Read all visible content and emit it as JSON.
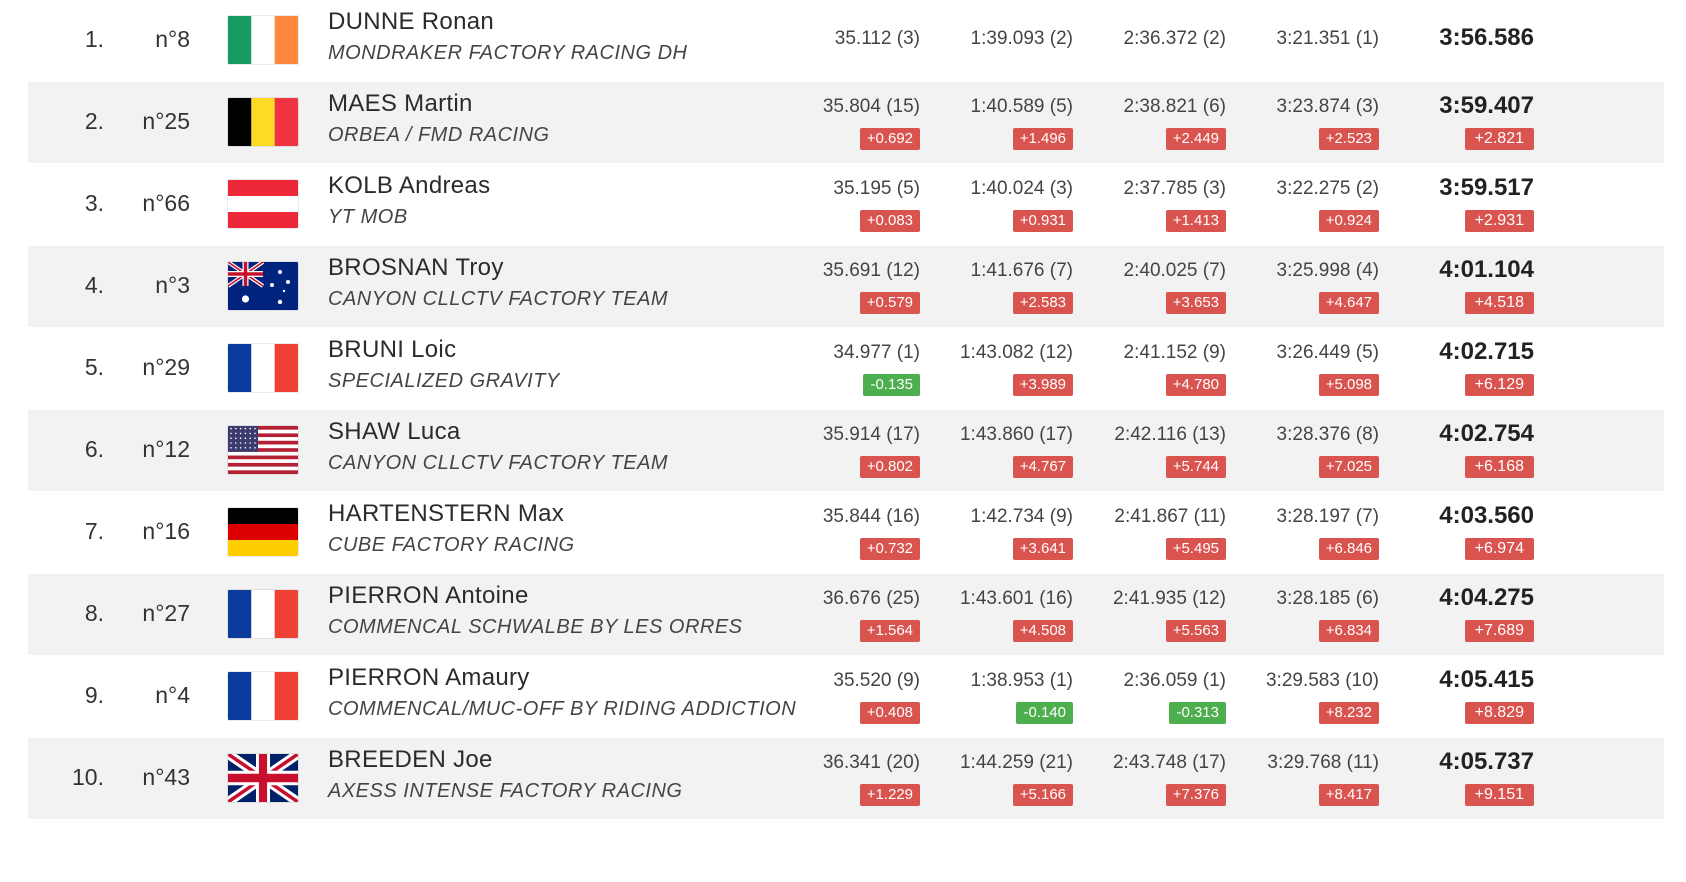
{
  "results": [
    {
      "rank": "1.",
      "bib": "n°8",
      "flag": "ireland",
      "name": "DUNNE Ronan",
      "team": "MONDRAKER FACTORY RACING DH",
      "splits": [
        {
          "time": "35.112 (3)",
          "gap": ""
        },
        {
          "time": "1:39.093 (2)",
          "gap": ""
        },
        {
          "time": "2:36.372 (2)",
          "gap": ""
        },
        {
          "time": "3:21.351 (1)",
          "gap": ""
        }
      ],
      "total": {
        "time": "3:56.586",
        "gap": ""
      }
    },
    {
      "rank": "2.",
      "bib": "n°25",
      "flag": "belgium",
      "name": "MAES Martin",
      "team": "ORBEA / FMD RACING",
      "splits": [
        {
          "time": "35.804 (15)",
          "gap": "+0.692"
        },
        {
          "time": "1:40.589 (5)",
          "gap": "+1.496"
        },
        {
          "time": "2:38.821 (6)",
          "gap": "+2.449"
        },
        {
          "time": "3:23.874 (3)",
          "gap": "+2.523"
        }
      ],
      "total": {
        "time": "3:59.407",
        "gap": "+2.821"
      }
    },
    {
      "rank": "3.",
      "bib": "n°66",
      "flag": "austria",
      "name": "KOLB Andreas",
      "team": "YT MOB",
      "splits": [
        {
          "time": "35.195 (5)",
          "gap": "+0.083"
        },
        {
          "time": "1:40.024 (3)",
          "gap": "+0.931"
        },
        {
          "time": "2:37.785 (3)",
          "gap": "+1.413"
        },
        {
          "time": "3:22.275 (2)",
          "gap": "+0.924"
        }
      ],
      "total": {
        "time": "3:59.517",
        "gap": "+2.931"
      }
    },
    {
      "rank": "4.",
      "bib": "n°3",
      "flag": "australia",
      "name": "BROSNAN Troy",
      "team": "CANYON CLLCTV FACTORY TEAM",
      "splits": [
        {
          "time": "35.691 (12)",
          "gap": "+0.579"
        },
        {
          "time": "1:41.676 (7)",
          "gap": "+2.583"
        },
        {
          "time": "2:40.025 (7)",
          "gap": "+3.653"
        },
        {
          "time": "3:25.998 (4)",
          "gap": "+4.647"
        }
      ],
      "total": {
        "time": "4:01.104",
        "gap": "+4.518"
      }
    },
    {
      "rank": "5.",
      "bib": "n°29",
      "flag": "france",
      "name": "BRUNI Loic",
      "team": "SPECIALIZED GRAVITY",
      "splits": [
        {
          "time": "34.977 (1)",
          "gap": "-0.135"
        },
        {
          "time": "1:43.082 (12)",
          "gap": "+3.989"
        },
        {
          "time": "2:41.152 (9)",
          "gap": "+4.780"
        },
        {
          "time": "3:26.449 (5)",
          "gap": "+5.098"
        }
      ],
      "total": {
        "time": "4:02.715",
        "gap": "+6.129"
      }
    },
    {
      "rank": "6.",
      "bib": "n°12",
      "flag": "usa",
      "name": "SHAW Luca",
      "team": "CANYON CLLCTV FACTORY TEAM",
      "splits": [
        {
          "time": "35.914 (17)",
          "gap": "+0.802"
        },
        {
          "time": "1:43.860 (17)",
          "gap": "+4.767"
        },
        {
          "time": "2:42.116 (13)",
          "gap": "+5.744"
        },
        {
          "time": "3:28.376 (8)",
          "gap": "+7.025"
        }
      ],
      "total": {
        "time": "4:02.754",
        "gap": "+6.168"
      }
    },
    {
      "rank": "7.",
      "bib": "n°16",
      "flag": "germany",
      "name": "HARTENSTERN Max",
      "team": "CUBE FACTORY RACING",
      "splits": [
        {
          "time": "35.844 (16)",
          "gap": "+0.732"
        },
        {
          "time": "1:42.734 (9)",
          "gap": "+3.641"
        },
        {
          "time": "2:41.867 (11)",
          "gap": "+5.495"
        },
        {
          "time": "3:28.197 (7)",
          "gap": "+6.846"
        }
      ],
      "total": {
        "time": "4:03.560",
        "gap": "+6.974"
      }
    },
    {
      "rank": "8.",
      "bib": "n°27",
      "flag": "france",
      "name": "PIERRON Antoine",
      "team": "COMMENCAL SCHWALBE BY LES ORRES",
      "splits": [
        {
          "time": "36.676 (25)",
          "gap": "+1.564"
        },
        {
          "time": "1:43.601 (16)",
          "gap": "+4.508"
        },
        {
          "time": "2:41.935 (12)",
          "gap": "+5.563"
        },
        {
          "time": "3:28.185 (6)",
          "gap": "+6.834"
        }
      ],
      "total": {
        "time": "4:04.275",
        "gap": "+7.689"
      }
    },
    {
      "rank": "9.",
      "bib": "n°4",
      "flag": "france",
      "name": "PIERRON Amaury",
      "team": "COMMENCAL/MUC-OFF BY RIDING ADDICTION",
      "splits": [
        {
          "time": "35.520 (9)",
          "gap": "+0.408"
        },
        {
          "time": "1:38.953 (1)",
          "gap": "-0.140"
        },
        {
          "time": "2:36.059 (1)",
          "gap": "-0.313"
        },
        {
          "time": "3:29.583 (10)",
          "gap": "+8.232"
        }
      ],
      "total": {
        "time": "4:05.415",
        "gap": "+8.829"
      }
    },
    {
      "rank": "10.",
      "bib": "n°43",
      "flag": "uk",
      "name": "BREEDEN Joe",
      "team": "AXESS INTENSE FACTORY RACING",
      "splits": [
        {
          "time": "36.341 (20)",
          "gap": "+1.229"
        },
        {
          "time": "1:44.259 (21)",
          "gap": "+5.166"
        },
        {
          "time": "2:43.748 (17)",
          "gap": "+7.376"
        },
        {
          "time": "3:29.768 (11)",
          "gap": "+8.417"
        }
      ],
      "total": {
        "time": "4:05.737",
        "gap": "+9.151"
      }
    }
  ]
}
